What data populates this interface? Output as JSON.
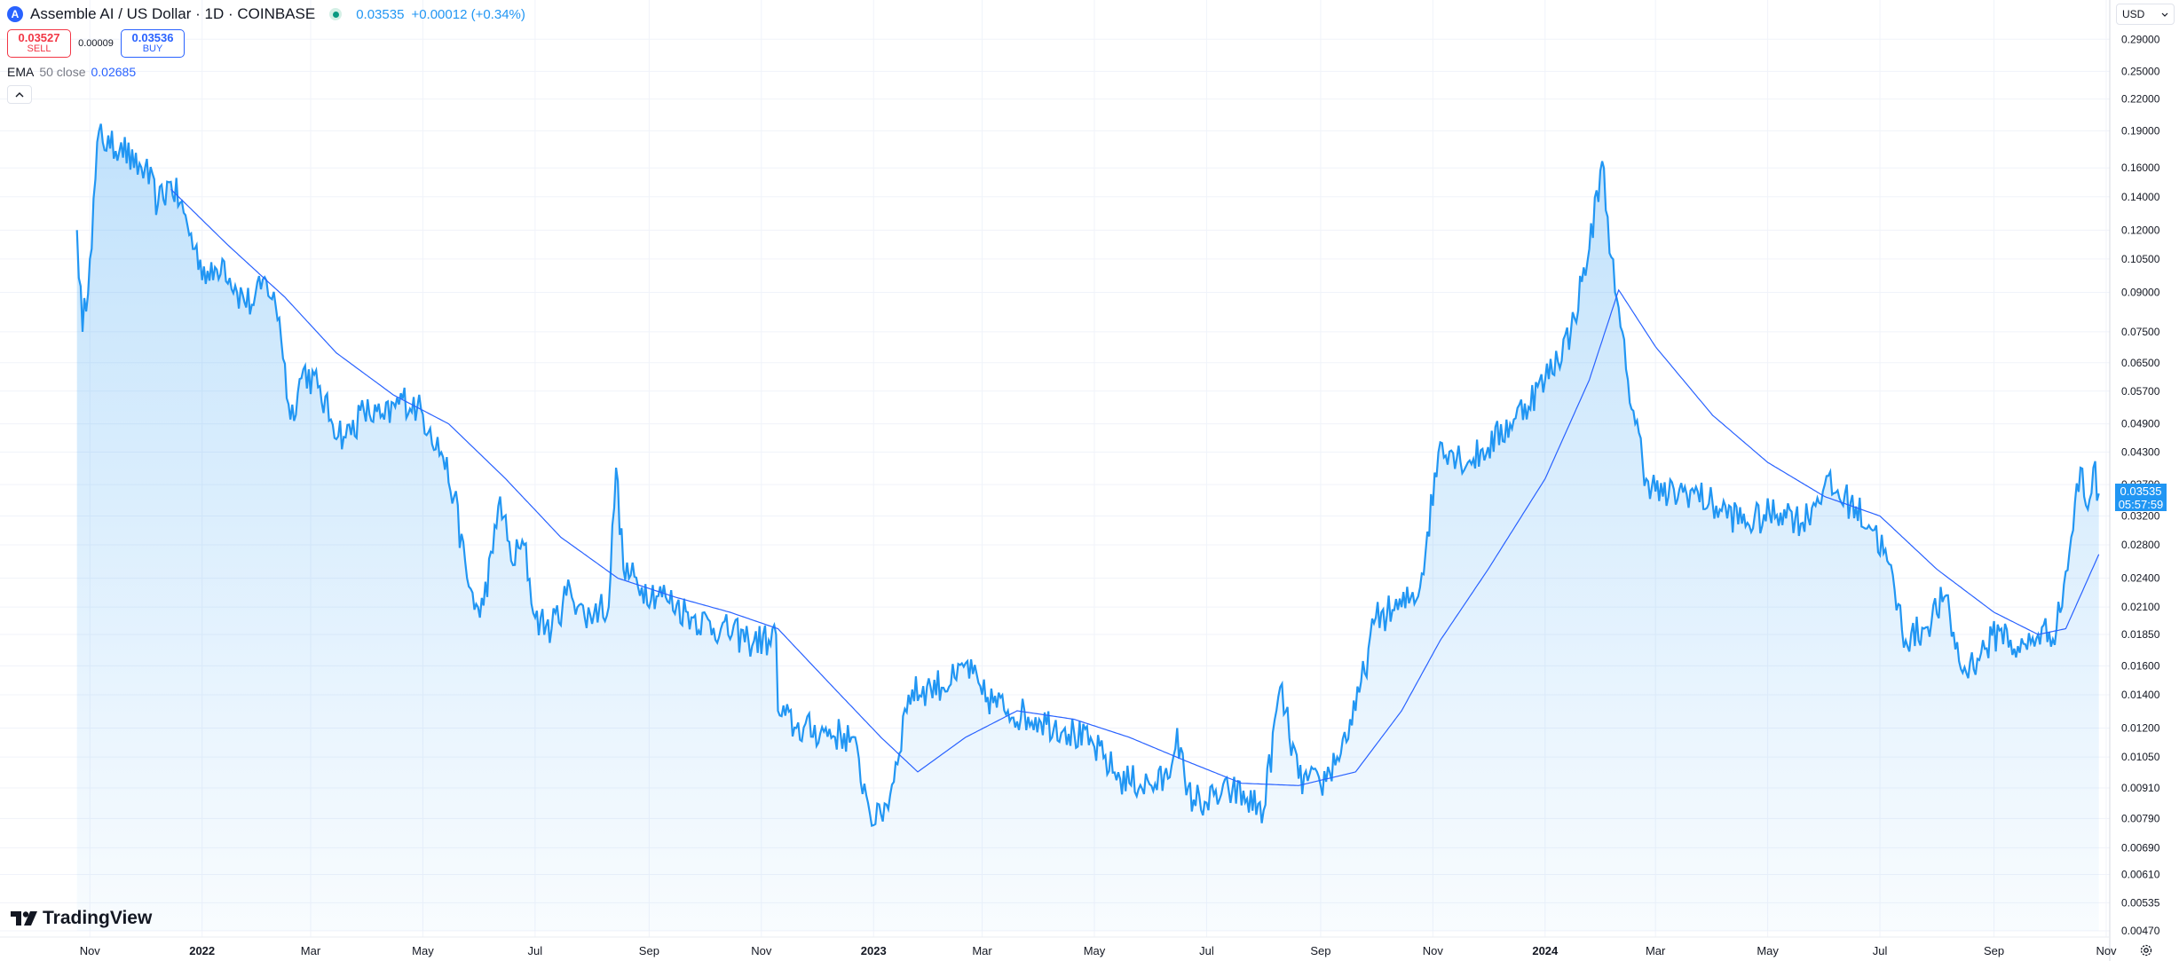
{
  "header": {
    "symbol_title": "Assemble AI / US Dollar · 1D · COINBASE",
    "logo_letter": "A",
    "last_price": "0.03535",
    "change": "+0.00012 (+0.34%)"
  },
  "trade": {
    "sell_price": "0.03527",
    "sell_label": "SELL",
    "spread": "0.00009",
    "buy_price": "0.03536",
    "buy_label": "BUY"
  },
  "indicator": {
    "name": "EMA",
    "params": "50 close",
    "value": "0.02685"
  },
  "currency": "USD",
  "price_tag": {
    "price": "0.03535",
    "countdown": "05:57:59"
  },
  "brand": "TradingView",
  "colors": {
    "line": "#2196f3",
    "ema": "#2962ff",
    "sell": "#f23645",
    "buy": "#2962ff"
  },
  "chart_data": {
    "type": "area",
    "scale": "log",
    "ylim": [
      0.0047,
      0.3
    ],
    "x_labels": [
      "Nov",
      "2022",
      "Mar",
      "May",
      "Jul",
      "Sep",
      "Nov",
      "2023",
      "Mar",
      "May",
      "Jul",
      "Sep",
      "Nov",
      "2024",
      "Mar",
      "May",
      "Jul",
      "Sep",
      "Nov"
    ],
    "y_ticks": [
      "0.29000",
      "0.25000",
      "0.22000",
      "0.19000",
      "0.16000",
      "0.14000",
      "0.12000",
      "0.10500",
      "0.09000",
      "0.07500",
      "0.06500",
      "0.05700",
      "0.04900",
      "0.04300",
      "0.03700",
      "0.03200",
      "0.02800",
      "0.02400",
      "0.02100",
      "0.01850",
      "0.01600",
      "0.01400",
      "0.01200",
      "0.01050",
      "0.00910",
      "0.00790",
      "0.00690",
      "0.00610",
      "0.00535",
      "0.00470"
    ],
    "series": [
      {
        "name": "Assemble AI / US Dollar",
        "points": [
          [
            "2021-10-25",
            0.12
          ],
          [
            "2021-10-28",
            0.075
          ],
          [
            "2021-11-01",
            0.105
          ],
          [
            "2021-11-06",
            0.19
          ],
          [
            "2021-11-12",
            0.175
          ],
          [
            "2021-11-18",
            0.18
          ],
          [
            "2021-11-25",
            0.16
          ],
          [
            "2021-12-01",
            0.16
          ],
          [
            "2021-12-08",
            0.135
          ],
          [
            "2021-12-15",
            0.15
          ],
          [
            "2021-12-22",
            0.13
          ],
          [
            "2021-12-28",
            0.11
          ],
          [
            "2022-01-05",
            0.095
          ],
          [
            "2022-01-12",
            0.105
          ],
          [
            "2022-01-20",
            0.09
          ],
          [
            "2022-01-28",
            0.085
          ],
          [
            "2022-02-05",
            0.095
          ],
          [
            "2022-02-12",
            0.08
          ],
          [
            "2022-02-18",
            0.05
          ],
          [
            "2022-02-25",
            0.063
          ],
          [
            "2022-03-05",
            0.058
          ],
          [
            "2022-03-12",
            0.05
          ],
          [
            "2022-03-20",
            0.046
          ],
          [
            "2022-03-30",
            0.052
          ],
          [
            "2022-04-10",
            0.05
          ],
          [
            "2022-04-20",
            0.055
          ],
          [
            "2022-04-28",
            0.053
          ],
          [
            "2022-05-05",
            0.048
          ],
          [
            "2022-05-12",
            0.042
          ],
          [
            "2022-05-18",
            0.035
          ],
          [
            "2022-05-25",
            0.024
          ],
          [
            "2022-06-01",
            0.02
          ],
          [
            "2022-06-08",
            0.027
          ],
          [
            "2022-06-12",
            0.035
          ],
          [
            "2022-06-18",
            0.026
          ],
          [
            "2022-06-25",
            0.028
          ],
          [
            "2022-07-01",
            0.02
          ],
          [
            "2022-07-10",
            0.019
          ],
          [
            "2022-07-20",
            0.023
          ],
          [
            "2022-07-28",
            0.02
          ],
          [
            "2022-08-05",
            0.021
          ],
          [
            "2022-08-10",
            0.021
          ],
          [
            "2022-08-14",
            0.04
          ],
          [
            "2022-08-18",
            0.025
          ],
          [
            "2022-08-28",
            0.023
          ],
          [
            "2022-09-10",
            0.022
          ],
          [
            "2022-09-25",
            0.02
          ],
          [
            "2022-10-10",
            0.019
          ],
          [
            "2022-10-25",
            0.018
          ],
          [
            "2022-11-05",
            0.018
          ],
          [
            "2022-11-09",
            0.0185
          ],
          [
            "2022-11-10",
            0.013
          ],
          [
            "2022-11-20",
            0.012
          ],
          [
            "2022-12-05",
            0.0118
          ],
          [
            "2022-12-20",
            0.0115
          ],
          [
            "2022-12-28",
            0.0088
          ],
          [
            "2023-01-02",
            0.0077
          ],
          [
            "2023-01-10",
            0.0088
          ],
          [
            "2023-01-20",
            0.014
          ],
          [
            "2023-02-01",
            0.0145
          ],
          [
            "2023-02-15",
            0.015
          ],
          [
            "2023-02-20",
            0.0162
          ],
          [
            "2023-03-01",
            0.014
          ],
          [
            "2023-03-15",
            0.013
          ],
          [
            "2023-04-01",
            0.0125
          ],
          [
            "2023-04-15",
            0.012
          ],
          [
            "2023-05-01",
            0.011
          ],
          [
            "2023-05-15",
            0.0095
          ],
          [
            "2023-06-01",
            0.0092
          ],
          [
            "2023-06-10",
            0.0095
          ],
          [
            "2023-06-15",
            0.012
          ],
          [
            "2023-06-20",
            0.0088
          ],
          [
            "2023-07-01",
            0.0085
          ],
          [
            "2023-07-15",
            0.009
          ],
          [
            "2023-08-01",
            0.0082
          ],
          [
            "2023-08-10",
            0.0145
          ],
          [
            "2023-08-20",
            0.0095
          ],
          [
            "2023-09-01",
            0.0092
          ],
          [
            "2023-09-10",
            0.0105
          ],
          [
            "2023-09-20",
            0.013
          ],
          [
            "2023-10-01",
            0.02
          ],
          [
            "2023-10-15",
            0.021
          ],
          [
            "2023-10-25",
            0.023
          ],
          [
            "2023-11-05",
            0.045
          ],
          [
            "2023-11-20",
            0.041
          ],
          [
            "2023-12-01",
            0.044
          ],
          [
            "2023-12-15",
            0.05
          ],
          [
            "2024-01-01",
            0.06
          ],
          [
            "2024-01-15",
            0.075
          ],
          [
            "2024-01-25",
            0.11
          ],
          [
            "2024-02-01",
            0.165
          ],
          [
            "2024-02-08",
            0.09
          ],
          [
            "2024-02-15",
            0.06
          ],
          [
            "2024-02-25",
            0.038
          ],
          [
            "2024-03-05",
            0.035
          ],
          [
            "2024-03-20",
            0.036
          ],
          [
            "2024-04-05",
            0.033
          ],
          [
            "2024-04-20",
            0.031
          ],
          [
            "2024-05-10",
            0.033
          ],
          [
            "2024-05-20",
            0.031
          ],
          [
            "2024-06-01",
            0.037
          ],
          [
            "2024-06-15",
            0.034
          ],
          [
            "2024-06-28",
            0.03
          ],
          [
            "2024-07-05",
            0.026
          ],
          [
            "2024-07-15",
            0.018
          ],
          [
            "2024-07-25",
            0.019
          ],
          [
            "2024-08-05",
            0.022
          ],
          [
            "2024-08-15",
            0.0155
          ],
          [
            "2024-08-25",
            0.017
          ],
          [
            "2024-09-05",
            0.019
          ],
          [
            "2024-09-15",
            0.017
          ],
          [
            "2024-09-25",
            0.0185
          ],
          [
            "2024-10-05",
            0.019
          ],
          [
            "2024-10-12",
            0.027
          ],
          [
            "2024-10-18",
            0.04
          ],
          [
            "2024-10-22",
            0.033
          ],
          [
            "2024-10-25",
            0.04
          ],
          [
            "2024-10-28",
            0.0355
          ]
        ]
      },
      {
        "name": "EMA 50 close",
        "points": [
          [
            "2021-12-15",
            0.145
          ],
          [
            "2022-01-15",
            0.112
          ],
          [
            "2022-02-15",
            0.088
          ],
          [
            "2022-03-15",
            0.068
          ],
          [
            "2022-04-15",
            0.056
          ],
          [
            "2022-05-15",
            0.049
          ],
          [
            "2022-06-15",
            0.038
          ],
          [
            "2022-07-15",
            0.029
          ],
          [
            "2022-08-15",
            0.024
          ],
          [
            "2022-09-15",
            0.022
          ],
          [
            "2022-10-15",
            0.0205
          ],
          [
            "2022-11-10",
            0.019
          ],
          [
            "2022-12-10",
            0.0145
          ],
          [
            "2023-01-05",
            0.0115
          ],
          [
            "2023-01-25",
            0.0098
          ],
          [
            "2023-02-20",
            0.0115
          ],
          [
            "2023-03-20",
            0.013
          ],
          [
            "2023-04-20",
            0.0125
          ],
          [
            "2023-05-20",
            0.0115
          ],
          [
            "2023-06-20",
            0.0103
          ],
          [
            "2023-07-20",
            0.0093
          ],
          [
            "2023-08-20",
            0.0092
          ],
          [
            "2023-09-20",
            0.0098
          ],
          [
            "2023-10-15",
            0.013
          ],
          [
            "2023-11-05",
            0.018
          ],
          [
            "2023-12-01",
            0.025
          ],
          [
            "2024-01-01",
            0.038
          ],
          [
            "2024-01-25",
            0.06
          ],
          [
            "2024-02-10",
            0.091
          ],
          [
            "2024-03-01",
            0.07
          ],
          [
            "2024-04-01",
            0.051
          ],
          [
            "2024-05-01",
            0.041
          ],
          [
            "2024-06-01",
            0.035
          ],
          [
            "2024-07-01",
            0.032
          ],
          [
            "2024-08-01",
            0.025
          ],
          [
            "2024-09-01",
            0.0205
          ],
          [
            "2024-09-25",
            0.0185
          ],
          [
            "2024-10-10",
            0.019
          ],
          [
            "2024-10-28",
            0.0268
          ]
        ]
      }
    ]
  }
}
